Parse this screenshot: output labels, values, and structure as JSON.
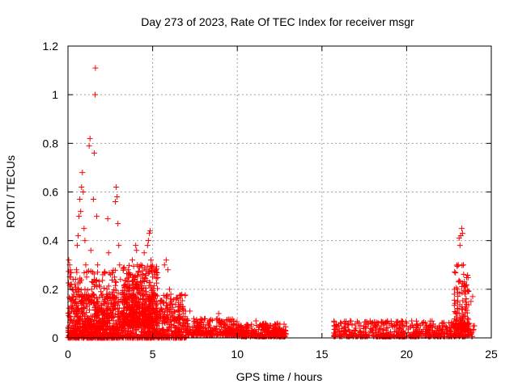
{
  "chart_data": {
    "type": "scatter",
    "title": "Day 273 of 2023, Rate Of TEC Index for receiver msgr",
    "xlabel": "GPS time / hours",
    "ylabel": "ROTI / TECUs",
    "xlim": [
      0,
      25
    ],
    "ylim": [
      0,
      1.2
    ],
    "xticks": [
      0,
      5,
      10,
      15,
      20,
      25
    ],
    "xtick_labels": [
      "0",
      "5",
      "10",
      "15",
      "20",
      "25"
    ],
    "yticks": [
      0,
      0.2,
      0.4,
      0.6,
      0.8,
      1.0,
      1.2
    ],
    "ytick_labels": [
      "0",
      "0.2",
      "0.4",
      "0.6",
      "0.8",
      "1",
      "1.2"
    ],
    "grid": true,
    "marker": "plus",
    "color": "#ff0000",
    "series": [
      {
        "points": [
          [
            0.05,
            0.32
          ],
          [
            0.1,
            0.3
          ],
          [
            0.15,
            0.25
          ],
          [
            0.2,
            0.22
          ],
          [
            0.25,
            0.2
          ],
          [
            0.3,
            0.24
          ],
          [
            0.35,
            0.18
          ],
          [
            0.4,
            0.15
          ],
          [
            0.45,
            0.2
          ],
          [
            0.5,
            0.28
          ],
          [
            0.55,
            0.38
          ],
          [
            0.6,
            0.42
          ],
          [
            0.65,
            0.5
          ],
          [
            0.7,
            0.57
          ],
          [
            0.75,
            0.52
          ],
          [
            0.8,
            0.62
          ],
          [
            0.85,
            0.68
          ],
          [
            0.9,
            0.6
          ],
          [
            0.95,
            0.45
          ],
          [
            1.0,
            0.4
          ],
          [
            0.6,
            0.12
          ],
          [
            0.7,
            0.08
          ],
          [
            0.8,
            0.15
          ],
          [
            0.9,
            0.1
          ],
          [
            1.0,
            0.2
          ],
          [
            1.05,
            0.3
          ],
          [
            1.1,
            0.25
          ],
          [
            1.2,
            0.15
          ],
          [
            1.25,
            0.79
          ],
          [
            1.3,
            0.82
          ],
          [
            1.35,
            0.36
          ],
          [
            1.4,
            0.2
          ],
          [
            1.45,
            0.18
          ],
          [
            1.5,
            0.57
          ],
          [
            1.55,
            0.76
          ],
          [
            1.6,
            1.0
          ],
          [
            1.62,
            1.11
          ],
          [
            1.7,
            0.5
          ],
          [
            1.75,
            0.3
          ],
          [
            1.8,
            0.12
          ],
          [
            1.9,
            0.05
          ],
          [
            2.0,
            0.1
          ],
          [
            2.1,
            0.08
          ],
          [
            2.2,
            0.15
          ],
          [
            2.3,
            0.2
          ],
          [
            2.35,
            0.49
          ],
          [
            2.4,
            0.35
          ],
          [
            2.5,
            0.26
          ],
          [
            2.6,
            0.18
          ],
          [
            2.7,
            0.12
          ],
          [
            2.75,
            0.25
          ],
          [
            2.8,
            0.56
          ],
          [
            2.85,
            0.62
          ],
          [
            2.9,
            0.58
          ],
          [
            2.95,
            0.47
          ],
          [
            3.0,
            0.38
          ],
          [
            3.05,
            0.3
          ],
          [
            3.1,
            0.24
          ],
          [
            3.2,
            0.18
          ],
          [
            3.3,
            0.1
          ],
          [
            3.4,
            0.15
          ],
          [
            3.5,
            0.22
          ],
          [
            3.55,
            0.28
          ],
          [
            3.6,
            0.2
          ],
          [
            3.7,
            0.26
          ],
          [
            3.8,
            0.32
          ],
          [
            3.85,
            0.25
          ],
          [
            3.9,
            0.2
          ],
          [
            4.0,
            0.38
          ],
          [
            4.05,
            0.36
          ],
          [
            4.1,
            0.3
          ],
          [
            4.2,
            0.22
          ],
          [
            4.3,
            0.3
          ],
          [
            4.4,
            0.18
          ],
          [
            4.5,
            0.35
          ],
          [
            4.6,
            0.28
          ],
          [
            4.7,
            0.38
          ],
          [
            4.75,
            0.4
          ],
          [
            4.8,
            0.43
          ],
          [
            4.85,
            0.44
          ],
          [
            4.9,
            0.32
          ],
          [
            5.0,
            0.25
          ],
          [
            5.1,
            0.18
          ],
          [
            5.2,
            0.12
          ],
          [
            5.3,
            0.08
          ],
          [
            5.5,
            0.15
          ],
          [
            5.7,
            0.3
          ],
          [
            5.8,
            0.32
          ],
          [
            5.9,
            0.28
          ],
          [
            6.0,
            0.2
          ],
          [
            6.1,
            0.15
          ],
          [
            6.2,
            0.1
          ],
          [
            6.3,
            0.08
          ],
          [
            6.5,
            0.06
          ],
          [
            6.8,
            0.1
          ],
          [
            7.0,
            0.07
          ],
          [
            7.2,
            0.11
          ],
          [
            7.5,
            0.06
          ],
          [
            7.8,
            0.05
          ],
          [
            8.0,
            0.04
          ],
          [
            8.3,
            0.05
          ],
          [
            8.6,
            0.04
          ],
          [
            8.9,
            0.1
          ],
          [
            9.0,
            0.06
          ],
          [
            9.3,
            0.04
          ],
          [
            9.6,
            0.03
          ],
          [
            10.0,
            0.03
          ],
          [
            10.3,
            0.02
          ],
          [
            10.6,
            0.04
          ],
          [
            10.9,
            0.03
          ],
          [
            11.1,
            0.07
          ],
          [
            11.3,
            0.05
          ],
          [
            11.6,
            0.04
          ],
          [
            11.9,
            0.03
          ],
          [
            12.2,
            0.04
          ],
          [
            12.5,
            0.03
          ],
          [
            12.8,
            0.02
          ],
          [
            15.7,
            0.02
          ],
          [
            16.0,
            0.05
          ],
          [
            16.3,
            0.04
          ],
          [
            16.6,
            0.03
          ],
          [
            17.0,
            0.04
          ],
          [
            17.3,
            0.05
          ],
          [
            17.6,
            0.04
          ],
          [
            17.9,
            0.06
          ],
          [
            18.2,
            0.04
          ],
          [
            18.5,
            0.05
          ],
          [
            18.8,
            0.04
          ],
          [
            19.1,
            0.06
          ],
          [
            19.4,
            0.05
          ],
          [
            19.7,
            0.07
          ],
          [
            20.0,
            0.06
          ],
          [
            20.3,
            0.07
          ],
          [
            20.6,
            0.05
          ],
          [
            20.9,
            0.06
          ],
          [
            21.2,
            0.04
          ],
          [
            21.5,
            0.03
          ],
          [
            21.8,
            0.04
          ],
          [
            22.1,
            0.05
          ],
          [
            22.4,
            0.04
          ],
          [
            22.7,
            0.06
          ],
          [
            22.9,
            0.1
          ],
          [
            23.0,
            0.2
          ],
          [
            23.05,
            0.3
          ],
          [
            23.1,
            0.41
          ],
          [
            23.15,
            0.38
          ],
          [
            23.2,
            0.42
          ],
          [
            23.25,
            0.45
          ],
          [
            23.3,
            0.43
          ],
          [
            23.35,
            0.3
          ],
          [
            23.4,
            0.22
          ],
          [
            23.45,
            0.18
          ],
          [
            23.5,
            0.12
          ],
          [
            23.6,
            0.08
          ],
          [
            23.7,
            0.06
          ],
          [
            23.8,
            0.15
          ],
          [
            23.9,
            0.17
          ],
          [
            24.0,
            0.05
          ]
        ],
        "bands": [
          {
            "x": [
              0,
              7
            ],
            "y": [
              0,
              0.18
            ],
            "count": 1100
          },
          {
            "x": [
              3.2,
              5.3
            ],
            "y": [
              0.05,
              0.3
            ],
            "count": 450
          },
          {
            "x": [
              0,
              3
            ],
            "y": [
              0,
              0.28
            ],
            "count": 320
          },
          {
            "x": [
              7,
              10
            ],
            "y": [
              0.01,
              0.08
            ],
            "count": 280
          },
          {
            "x": [
              10,
              12.9
            ],
            "y": [
              0.005,
              0.06
            ],
            "count": 250
          },
          {
            "x": [
              15.7,
              24.0
            ],
            "y": [
              0.005,
              0.07
            ],
            "count": 520
          },
          {
            "x": [
              22.8,
              23.7
            ],
            "y": [
              0.03,
              0.3
            ],
            "count": 120
          }
        ]
      }
    ]
  }
}
